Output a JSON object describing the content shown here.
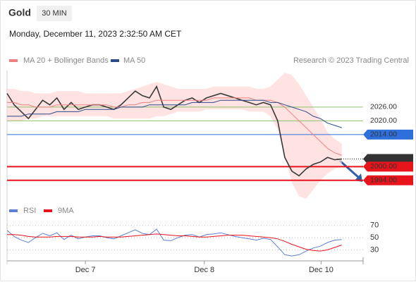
{
  "header": {
    "title": "Gold",
    "timeframe": "30 MIN",
    "datetime": "Monday, December 11, 2023 2:32:50 AM CET",
    "credit": "Research © 2023 Trading Central"
  },
  "chart_data": [
    {
      "type": "line",
      "x": [
        0,
        1,
        2,
        3,
        4,
        5,
        6,
        7,
        8,
        9,
        10,
        11,
        12,
        13,
        14,
        15,
        16,
        17,
        18,
        19,
        20,
        21,
        22,
        23,
        24,
        25,
        26,
        27,
        28,
        29,
        30,
        31,
        32,
        33,
        34,
        35,
        36,
        37,
        38,
        39,
        40,
        41,
        42,
        43,
        44,
        45,
        46,
        47
      ],
      "xlim": [
        0,
        50
      ],
      "ylim": [
        1985,
        2042
      ],
      "series": [
        {
          "color": "#3a3a3a",
          "values": [
            2032,
            2027,
            2024,
            2021,
            2025,
            2029,
            2027,
            2030,
            2025,
            2028,
            2025,
            2026,
            2027,
            2027,
            2026,
            2025,
            2027,
            2030,
            2033,
            2031,
            2030,
            2035,
            2026,
            2025,
            2027,
            2029,
            2030,
            2028,
            2030,
            2031,
            2032,
            2031,
            2030,
            2029,
            2028,
            2027,
            2028,
            2027,
            2020,
            2004,
            1998,
            1996,
            1999,
            2001,
            2002,
            2004,
            2003,
            2003.3
          ]
        },
        {
          "name": "MA 20 + Bollinger Bands",
          "color": "#f08080",
          "values": [
            2028,
            2028,
            2027,
            2027,
            2026,
            2026,
            2026,
            2027,
            2027,
            2027,
            2027,
            2027,
            2027,
            2027,
            2027,
            2026,
            2026,
            2027,
            2027,
            2028,
            2028,
            2029,
            2029,
            2029,
            2029,
            2029,
            2029,
            2029,
            2029,
            2030,
            2030,
            2030,
            2030,
            2030,
            2030,
            2029,
            2029,
            2029,
            2028,
            2026,
            2023,
            2020,
            2017,
            2014,
            2011,
            2008,
            2006,
            2005
          ]
        },
        {
          "name": "MA 50",
          "color": "#2b4a8a",
          "values": [
            2022,
            2022,
            2022,
            2023,
            2023,
            2023,
            2023,
            2024,
            2024,
            2024,
            2024,
            2025,
            2025,
            2025,
            2025,
            2025,
            2026,
            2026,
            2026,
            2026,
            2027,
            2027,
            2027,
            2027,
            2027,
            2027,
            2028,
            2028,
            2028,
            2028,
            2029,
            2029,
            2029,
            2029,
            2029,
            2029,
            2029,
            2028,
            2028,
            2027,
            2026,
            2025,
            2024,
            2022,
            2021,
            2019,
            2018,
            2017
          ]
        }
      ],
      "band": {
        "color": "#ffd6d6",
        "upper": [
          2034,
          2034,
          2033,
          2033,
          2032,
          2032,
          2032,
          2033,
          2033,
          2033,
          2033,
          2032,
          2032,
          2032,
          2032,
          2032,
          2032,
          2033,
          2034,
          2035,
          2036,
          2037,
          2036,
          2035,
          2034,
          2034,
          2034,
          2034,
          2034,
          2035,
          2035,
          2035,
          2035,
          2035,
          2035,
          2034,
          2034,
          2035,
          2038,
          2041,
          2040,
          2036,
          2031,
          2026,
          2021,
          2015,
          2012,
          2010
        ],
        "lower": [
          2020,
          2020,
          2020,
          2021,
          2021,
          2022,
          2022,
          2022,
          2022,
          2022,
          2022,
          2022,
          2022,
          2022,
          2022,
          2021,
          2021,
          2021,
          2021,
          2021,
          2021,
          2022,
          2022,
          2023,
          2024,
          2024,
          2024,
          2024,
          2025,
          2025,
          2025,
          2025,
          2025,
          2025,
          2024,
          2024,
          2024,
          2022,
          2016,
          2005,
          1993,
          1987,
          1986,
          1990,
          1994,
          1997,
          1999,
          2000
        ]
      },
      "levels": [
        {
          "value": 2026,
          "label": "2026.00",
          "color": "#8fc36a",
          "style": "text"
        },
        {
          "value": 2020,
          "label": "2020.00",
          "color": "#8fc36a",
          "style": "text"
        },
        {
          "value": 2014,
          "label": "2014.00",
          "color": "#2f6fdc",
          "style": "box"
        },
        {
          "value": 2003.32,
          "label": "2003.32",
          "color": "#333333",
          "style": "price"
        },
        {
          "value": 2000,
          "label": "2000.00",
          "color": "#e8141c",
          "style": "box"
        },
        {
          "value": 1994,
          "label": "1994.00",
          "color": "#e8141c",
          "style": "box"
        }
      ]
    },
    {
      "type": "line",
      "x": [
        0,
        1,
        2,
        3,
        4,
        5,
        6,
        7,
        8,
        9,
        10,
        11,
        12,
        13,
        14,
        15,
        16,
        17,
        18,
        19,
        20,
        21,
        22,
        23,
        24,
        25,
        26,
        27,
        28,
        29,
        30,
        31,
        32,
        33,
        34,
        35,
        36,
        37,
        38,
        39,
        40,
        41,
        42,
        43,
        44,
        45,
        46,
        47
      ],
      "xlim": [
        0,
        50
      ],
      "ylim": [
        12,
        79
      ],
      "yticks": [
        30,
        50,
        70
      ],
      "xticks": [
        {
          "value": 11,
          "label": "Dec 7"
        },
        {
          "value": 27.7,
          "label": "Dec 8"
        },
        {
          "value": 44.1,
          "label": "Dec 10"
        }
      ],
      "series": [
        {
          "name": "RSI",
          "color": "#5b7fd6",
          "values": [
            62,
            52,
            46,
            42,
            50,
            57,
            53,
            58,
            47,
            54,
            48,
            51,
            53,
            53,
            50,
            48,
            53,
            58,
            63,
            57,
            55,
            64,
            46,
            45,
            50,
            54,
            55,
            51,
            55,
            56,
            58,
            55,
            52,
            50,
            48,
            46,
            49,
            47,
            35,
            22,
            20,
            22,
            28,
            33,
            36,
            42,
            46,
            47
          ]
        },
        {
          "name": "9MA",
          "color": "#e8141c",
          "values": [
            55,
            55,
            54,
            52,
            51,
            51,
            51,
            52,
            52,
            52,
            51,
            51,
            51,
            52,
            51,
            51,
            51,
            52,
            53,
            54,
            55,
            56,
            55,
            54,
            53,
            53,
            52,
            51,
            51,
            52,
            53,
            54,
            54,
            54,
            53,
            52,
            51,
            50,
            48,
            44,
            39,
            35,
            31,
            29,
            28,
            30,
            34,
            38
          ]
        }
      ]
    }
  ]
}
